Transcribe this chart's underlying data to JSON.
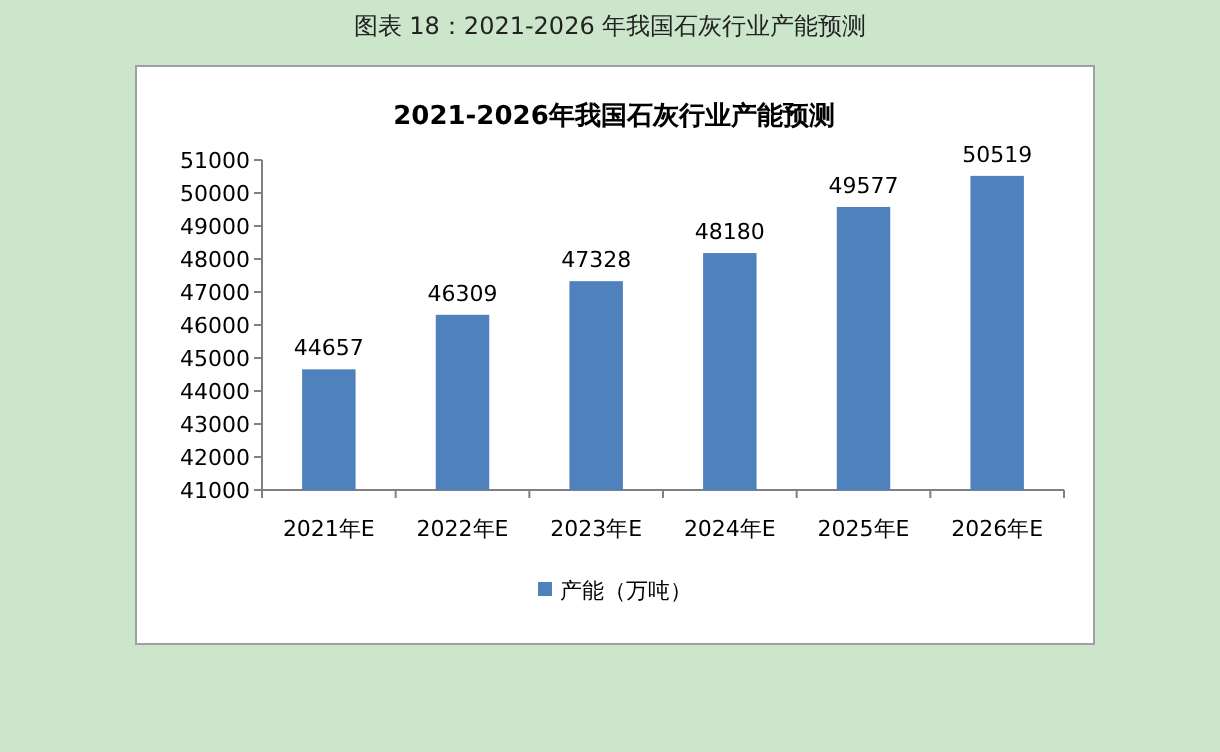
{
  "chart_data": {
    "type": "bar",
    "title": "2021-2026年我国石灰行业产能预测",
    "annotations": [
      "图表 18：2021-2026 年我国石灰行业产能预测"
    ],
    "categories": [
      "2021年E",
      "2022年E",
      "2023年E",
      "2024年E",
      "2025年E",
      "2026年E"
    ],
    "series": [
      {
        "name": "产能（万吨）",
        "color": "#4f81bd",
        "values": [
          44657,
          46309,
          47328,
          48180,
          49577,
          50519
        ]
      }
    ],
    "ylim": [
      41000,
      51000
    ],
    "yticks": [
      41000,
      42000,
      43000,
      44000,
      45000,
      46000,
      47000,
      48000,
      49000,
      50000,
      51000
    ],
    "data_labels": true,
    "legend": "bottom"
  }
}
